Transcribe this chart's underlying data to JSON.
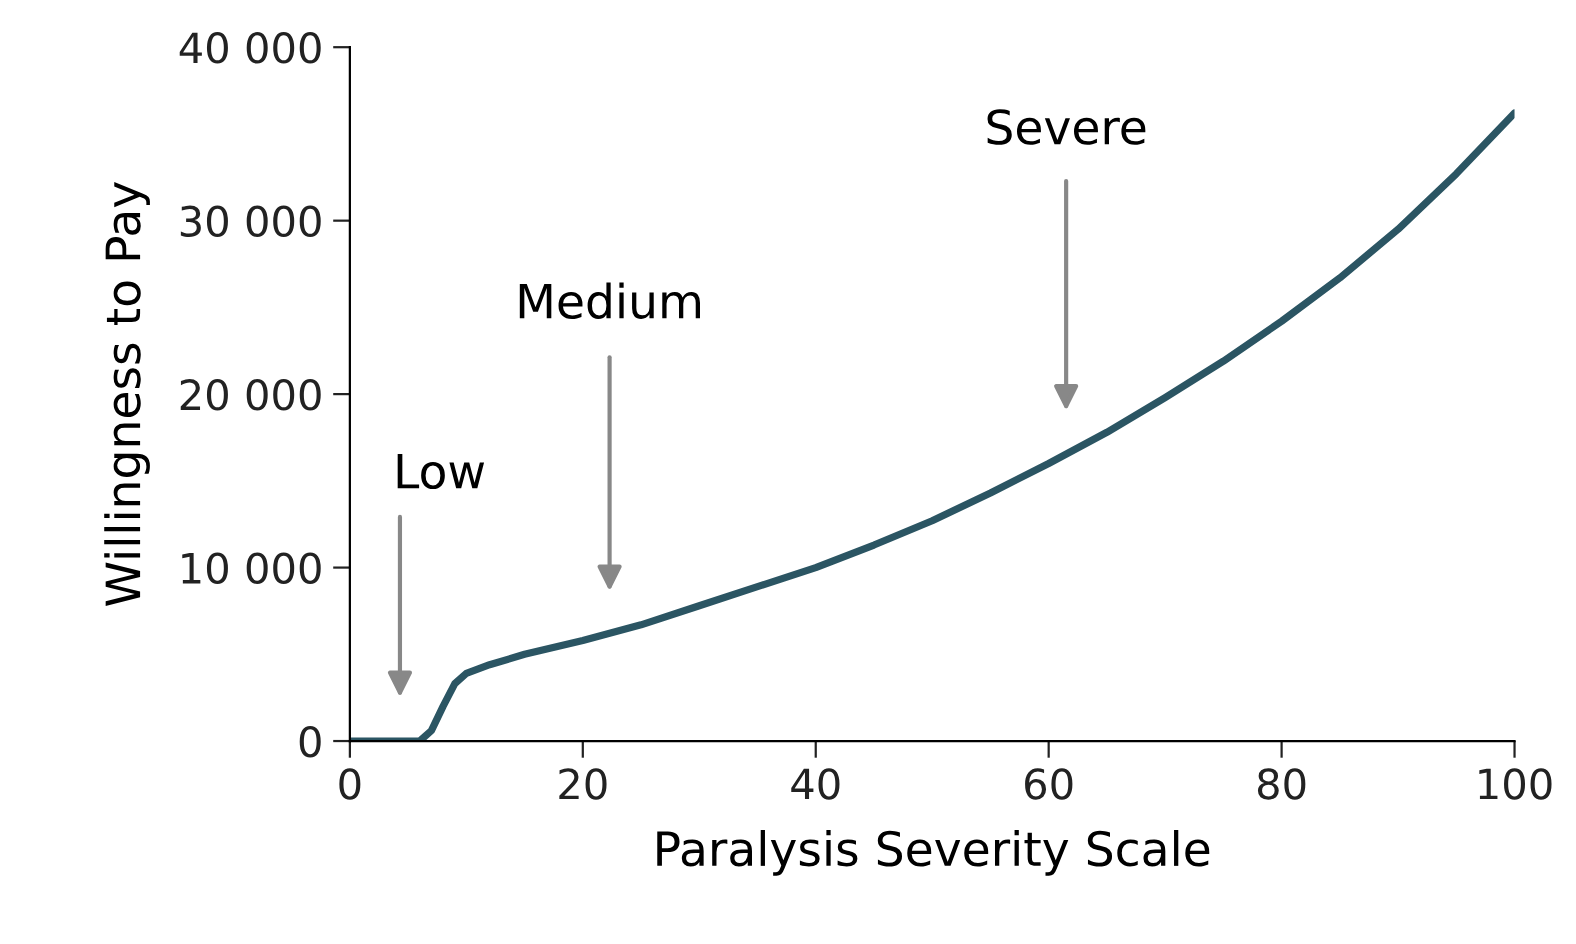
{
  "chart_data": {
    "type": "line",
    "xlabel": "Paralysis Severity Scale",
    "ylabel": "Willingness to Pay",
    "x": [
      0,
      5,
      6,
      7,
      8,
      9,
      10,
      12,
      15,
      20,
      25,
      30,
      35,
      40,
      45,
      50,
      55,
      60,
      65,
      70,
      75,
      80,
      85,
      90,
      95,
      100
    ],
    "series": [
      {
        "color": "#2b5563",
        "values": [
          0,
          0,
          0,
          600,
          2000,
          3300,
          3900,
          4400,
          5000,
          5800,
          6700,
          7800,
          8900,
          10000,
          11300,
          12700,
          14300,
          16000,
          17800,
          19800,
          21900,
          24200,
          26700,
          29500,
          32700,
          36200
        ]
      }
    ],
    "xlim": [
      0,
      100
    ],
    "xticks": [
      0,
      20,
      40,
      60,
      80,
      100
    ],
    "ylim": [
      0,
      40000
    ],
    "yticks": [
      {
        "value": 0,
        "label": "0"
      },
      {
        "value": 10000,
        "label": "10 000"
      },
      {
        "value": 20000,
        "label": "20 000"
      },
      {
        "value": 30000,
        "label": "30 000"
      },
      {
        "value": 40000,
        "label": "40 000"
      }
    ],
    "annotations": [
      "Low",
      "Medium",
      "Severe"
    ],
    "grid": false,
    "legend": false,
    "marker": "none",
    "line_style": "solid"
  }
}
